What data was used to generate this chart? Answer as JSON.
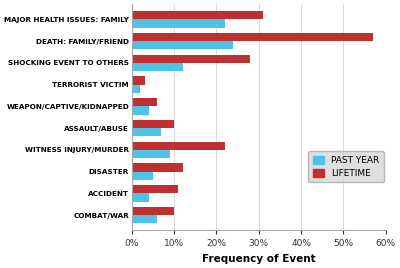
{
  "categories": [
    "MAJOR HEALTH ISSUES: FAMILY",
    "DEATH: FAMILY/FRIEND",
    "SHOCKING EVENT TO OTHERS",
    "TERRORIST VICTIM",
    "WEAPON/CAPTIVE/KIDNAPPED",
    "ASSAULT/ABUSE",
    "WITNESS INJURY/MURDER",
    "DISASTER",
    "ACCIDENT",
    "COMBAT/WAR"
  ],
  "past_year": [
    22,
    24,
    12,
    2,
    4,
    7,
    9,
    5,
    4,
    6
  ],
  "lifetime": [
    31,
    57,
    28,
    3,
    6,
    10,
    22,
    12,
    11,
    10
  ],
  "past_year_color": "#4DC3E8",
  "lifetime_color": "#BF3030",
  "xlabel": "Frequency of Event",
  "xlim": [
    0,
    60
  ],
  "xticks": [
    0,
    10,
    20,
    30,
    40,
    50,
    60
  ],
  "xticklabels": [
    "0%",
    "10%",
    "20%",
    "30%",
    "40%",
    "50%",
    "60%"
  ],
  "legend_past_year": "PAST YEAR",
  "legend_lifetime": "LIFETIME",
  "background_color": "#FFFFFF"
}
